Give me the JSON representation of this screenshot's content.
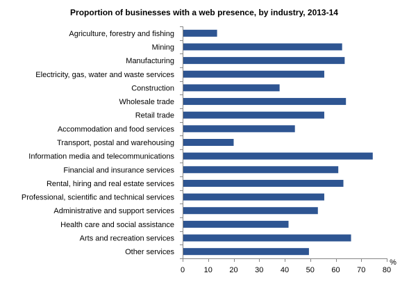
{
  "chart_data": {
    "type": "bar",
    "orientation": "horizontal",
    "title": "Proportion of businesses with a web presence, by industry, 2013-14",
    "xlabel": "",
    "ylabel": "",
    "unit_label": "%",
    "xlim": [
      0,
      80
    ],
    "xticks": [
      "0",
      "10",
      "20",
      "30",
      "40",
      "50",
      "60",
      "70",
      "80"
    ],
    "grid": false,
    "legend": "none",
    "bar_color": "#2E5592",
    "categories": [
      "Agriculture, forestry and fishing",
      "Mining",
      "Manufacturing",
      "Electricity, gas, water and waste services",
      "Construction",
      "Wholesale trade",
      "Retail trade",
      "Accommodation and food services",
      "Transport, postal and warehousing",
      "Information media and telecommunications",
      "Financial and insurance services",
      "Rental, hiring and real estate services",
      "Professional, scientific and technical services",
      "Administrative and support services",
      "Health care and social assistance",
      "Arts and recreation services",
      "Other services"
    ],
    "values": [
      13.5,
      62.5,
      63.5,
      55.5,
      38,
      64,
      55.5,
      44,
      20,
      74.5,
      61,
      63,
      55.5,
      53,
      41.5,
      66,
      49.5
    ]
  }
}
